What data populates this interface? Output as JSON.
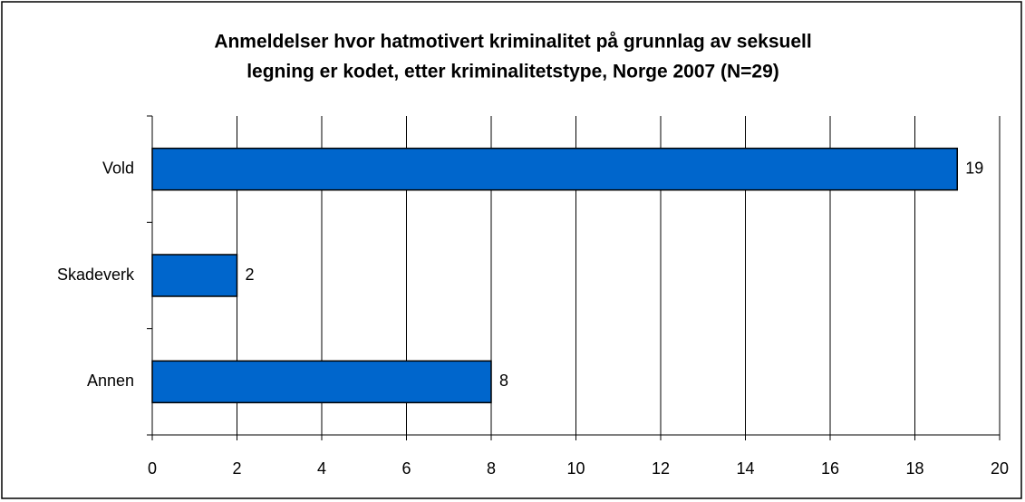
{
  "chart_data": {
    "type": "barh",
    "title": [
      "Anmeldelser hvor hatmotivert kriminalitet på grunnlag av seksuell",
      "legning er kodet, etter kriminalitetstype, Norge 2007 (N=29)"
    ],
    "categories": [
      "Vold",
      "Skadeverk",
      "Annen"
    ],
    "values": [
      19,
      2,
      8
    ],
    "color": "#0066cc",
    "xlim": [
      0,
      20
    ],
    "xticks": [
      0,
      2,
      4,
      6,
      8,
      10,
      12,
      14,
      16,
      18,
      20
    ],
    "grid": true
  }
}
